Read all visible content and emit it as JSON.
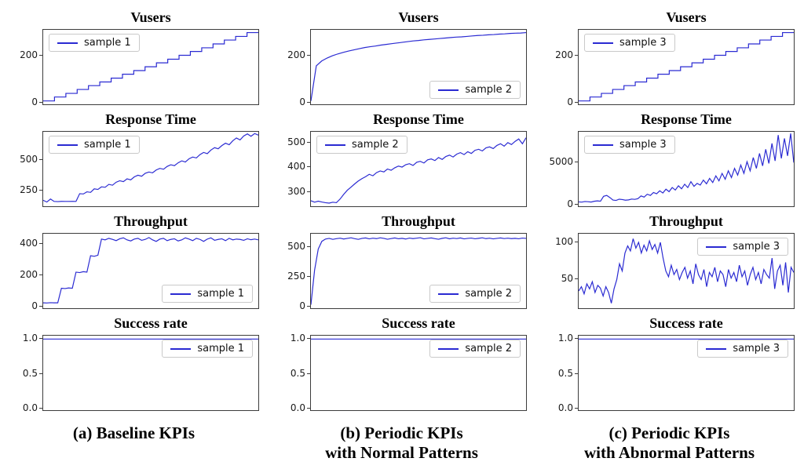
{
  "style": {
    "line_color": "#2a2ad2",
    "axis_color": "#3c3c3c"
  },
  "captions": {
    "a": {
      "line1": "(a) Baseline KPIs",
      "line2": ""
    },
    "b": {
      "line1": "(b) Periodic KPIs",
      "line2": "with Normal Patterns"
    },
    "c": {
      "line1": "(c) Periodic KPIs",
      "line2": "with Abnormal Patterns"
    }
  },
  "chart_data": [
    {
      "type": "line",
      "title": "Vusers",
      "legend_label": "sample 1",
      "legend_pos": "ul",
      "ylim": [
        -15,
        312
      ],
      "yticks": [
        0,
        200
      ],
      "ytick_labels": [
        "0",
        "200"
      ],
      "style": "steps",
      "values": [
        0,
        17,
        33,
        50,
        67,
        83,
        100,
        117,
        133,
        150,
        167,
        183,
        200,
        217,
        233,
        250,
        267,
        283,
        300
      ]
    },
    {
      "type": "line",
      "title": "Vusers",
      "legend_label": "sample 2",
      "legend_pos": "lr",
      "ylim": [
        -15,
        312
      ],
      "yticks": [
        0,
        200
      ],
      "ytick_labels": [
        "0",
        "200"
      ],
      "style": "line",
      "values": [
        0,
        154,
        175,
        188,
        198,
        206,
        213,
        219,
        224,
        229,
        234,
        238,
        241,
        245,
        248,
        251,
        254,
        257,
        260,
        263,
        265,
        268,
        270,
        272,
        274,
        276,
        278,
        280,
        281,
        283,
        285,
        287,
        288,
        290,
        291,
        293,
        294,
        296,
        297,
        298,
        300
      ]
    },
    {
      "type": "line",
      "title": "Vusers",
      "legend_label": "sample 3",
      "legend_pos": "ul",
      "ylim": [
        -15,
        312
      ],
      "yticks": [
        0,
        200
      ],
      "ytick_labels": [
        "0",
        "200"
      ],
      "style": "steps",
      "values": [
        0,
        17,
        33,
        50,
        67,
        83,
        100,
        117,
        133,
        150,
        167,
        183,
        200,
        217,
        233,
        250,
        267,
        283,
        300
      ]
    },
    {
      "type": "line",
      "title": "Response Time",
      "legend_label": "sample 1",
      "legend_pos": "ul",
      "ylim": [
        110,
        730
      ],
      "yticks": [
        250,
        500
      ],
      "ytick_labels": [
        "250",
        "500"
      ],
      "style": "line",
      "values": [
        160,
        145,
        170,
        150,
        149,
        151,
        150,
        150,
        151,
        150,
        215,
        212,
        230,
        226,
        255,
        250,
        272,
        268,
        292,
        285,
        310,
        322,
        315,
        338,
        330,
        355,
        368,
        360,
        385,
        395,
        388,
        412,
        425,
        418,
        442,
        455,
        448,
        472,
        488,
        478,
        505,
        520,
        512,
        540,
        558,
        548,
        578,
        598,
        588,
        615,
        635,
        622,
        655,
        678,
        662,
        695,
        712,
        692,
        715,
        702
      ]
    },
    {
      "type": "line",
      "title": "Response Time",
      "legend_label": "sample 2",
      "legend_pos": "ul",
      "ylim": [
        235,
        545
      ],
      "yticks": [
        300,
        400,
        500
      ],
      "ytick_labels": [
        "300",
        "400",
        "500"
      ],
      "style": "line",
      "values": [
        258,
        252,
        256,
        253,
        250,
        248,
        252,
        250,
        265,
        285,
        302,
        315,
        328,
        340,
        350,
        358,
        368,
        362,
        375,
        382,
        378,
        390,
        385,
        395,
        402,
        398,
        408,
        412,
        405,
        418,
        422,
        415,
        428,
        432,
        425,
        438,
        430,
        442,
        448,
        440,
        452,
        458,
        450,
        462,
        455,
        468,
        472,
        465,
        478,
        482,
        475,
        488,
        495,
        485,
        500,
        492,
        505,
        515,
        495,
        520
      ]
    },
    {
      "type": "line",
      "title": "Response Time",
      "legend_label": "sample 3",
      "legend_pos": "ul",
      "ylim": [
        -350,
        8600
      ],
      "yticks": [
        0,
        5000
      ],
      "ytick_labels": [
        "0",
        "5000"
      ],
      "style": "line",
      "values": [
        180,
        150,
        220,
        190,
        160,
        250,
        300,
        260,
        850,
        950,
        700,
        400,
        350,
        500,
        450,
        380,
        420,
        520,
        480,
        560,
        900,
        750,
        1100,
        950,
        1300,
        1150,
        1500,
        1250,
        1700,
        1400,
        1900,
        1600,
        2100,
        1750,
        2300,
        1900,
        2600,
        2050,
        2400,
        2200,
        2800,
        2350,
        3000,
        2500,
        3300,
        2700,
        3600,
        2900,
        3900,
        3100,
        4200,
        3400,
        4600,
        3600,
        5000,
        3900,
        5500,
        4200,
        6000,
        4500,
        6500,
        4800,
        7200,
        5100,
        8200,
        5400,
        7800,
        5700,
        8400,
        4900
      ]
    },
    {
      "type": "line",
      "title": "Throughput",
      "legend_label": "sample 1",
      "legend_pos": "lr",
      "ylim": [
        -20,
        465
      ],
      "yticks": [
        0,
        200,
        400
      ],
      "ytick_labels": [
        "0",
        "200",
        "400"
      ],
      "style": "line",
      "values": [
        15,
        14,
        16,
        15,
        15,
        110,
        108,
        112,
        110,
        215,
        212,
        218,
        215,
        322,
        318,
        325,
        430,
        425,
        435,
        428,
        420,
        432,
        438,
        425,
        418,
        430,
        435,
        422,
        428,
        440,
        425,
        415,
        430,
        435,
        420,
        428,
        432,
        418,
        425,
        438,
        430,
        420,
        435,
        428,
        415,
        430,
        438,
        422,
        428,
        432,
        420,
        435,
        425,
        430,
        428,
        422,
        432,
        426,
        430,
        425
      ]
    },
    {
      "type": "line",
      "title": "Throughput",
      "legend_label": "sample 2",
      "legend_pos": "lr",
      "ylim": [
        -25,
        610
      ],
      "yticks": [
        0,
        250,
        500
      ],
      "ytick_labels": [
        "0",
        "250",
        "500"
      ],
      "style": "line",
      "values": [
        5,
        300,
        480,
        545,
        565,
        570,
        562,
        568,
        572,
        565,
        570,
        575,
        568,
        562,
        570,
        574,
        566,
        572,
        568,
        575,
        570,
        563,
        569,
        574,
        567,
        571,
        565,
        573,
        568,
        572,
        576,
        566,
        570,
        574,
        568,
        563,
        571,
        575,
        567,
        572,
        569,
        574,
        566,
        570,
        573,
        567,
        571,
        575,
        568,
        572,
        566,
        570,
        574,
        569,
        572,
        568,
        571,
        567,
        573,
        570
      ]
    },
    {
      "type": "line",
      "title": "Throughput",
      "legend_label": "sample 3",
      "legend_pos": "ur",
      "ylim": [
        8,
        112
      ],
      "yticks": [
        50,
        100
      ],
      "ytick_labels": [
        "50",
        "100"
      ],
      "style": "line",
      "values": [
        32,
        38,
        28,
        42,
        35,
        45,
        30,
        40,
        36,
        25,
        38,
        30,
        15,
        35,
        48,
        70,
        60,
        85,
        95,
        88,
        105,
        92,
        100,
        85,
        96,
        88,
        102,
        90,
        97,
        85,
        100,
        78,
        60,
        52,
        68,
        55,
        62,
        48,
        58,
        65,
        50,
        60,
        42,
        70,
        55,
        48,
        62,
        38,
        58,
        52,
        65,
        45,
        60,
        55,
        38,
        62,
        50,
        58,
        45,
        68,
        52,
        60,
        40,
        55,
        65,
        48,
        58,
        42,
        62,
        55,
        50,
        78,
        35,
        60,
        68,
        40,
        72,
        30,
        65,
        58
      ]
    },
    {
      "type": "line",
      "title": "Success rate",
      "legend_label": "sample 1",
      "legend_pos": "ur",
      "ylim": [
        -0.05,
        1.05
      ],
      "yticks": [
        0.0,
        0.5,
        1.0
      ],
      "ytick_labels": [
        "0.0",
        "0.5",
        "1.0"
      ],
      "style": "line",
      "values": [
        1,
        1
      ]
    },
    {
      "type": "line",
      "title": "Success rate",
      "legend_label": "sample 2",
      "legend_pos": "ur",
      "ylim": [
        -0.05,
        1.05
      ],
      "yticks": [
        0.0,
        0.5,
        1.0
      ],
      "ytick_labels": [
        "0.0",
        "0.5",
        "1.0"
      ],
      "style": "line",
      "values": [
        1,
        1
      ]
    },
    {
      "type": "line",
      "title": "Success rate",
      "legend_label": "sample 3",
      "legend_pos": "ur",
      "ylim": [
        -0.05,
        1.05
      ],
      "yticks": [
        0.0,
        0.5,
        1.0
      ],
      "ytick_labels": [
        "0.0",
        "0.5",
        "1.0"
      ],
      "style": "line",
      "values": [
        1,
        1
      ]
    }
  ]
}
